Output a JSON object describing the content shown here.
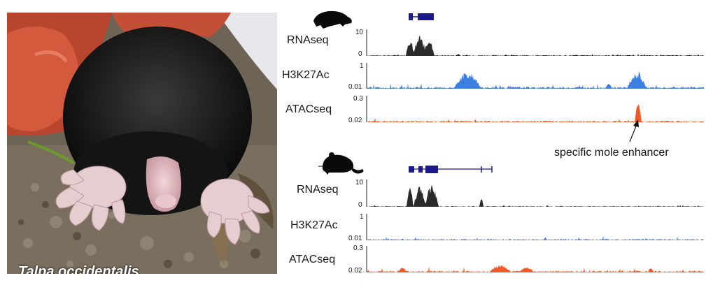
{
  "photo": {
    "caption": "Talpa occidentalis"
  },
  "panels": [
    {
      "species_icon": "mole-silhouette-icon",
      "tracks": [
        {
          "label": "RNAseq",
          "ymax": "10",
          "ymin": "0",
          "color": "#1a1a1a"
        },
        {
          "label": "H3K27Ac",
          "ymax": "1",
          "ymin": "0.01",
          "color": "#3d7fe0"
        },
        {
          "label": "ATACseq",
          "ymax": "0.3",
          "ymin": "0.02",
          "color": "#f05a28"
        }
      ]
    },
    {
      "species_icon": "mouse-silhouette-icon",
      "tracks": [
        {
          "label": "RNAseq",
          "ymax": "10",
          "ymin": "0",
          "color": "#1a1a1a"
        },
        {
          "label": "H3K27Ac",
          "ymax": "1",
          "ymin": "0.01",
          "color": "#3d7fe0"
        },
        {
          "label": "ATACseq",
          "ymax": "0.3",
          "ymin": "0.02",
          "color": "#f05a28"
        }
      ]
    }
  ],
  "annotation": {
    "text": "specific mole enhancer"
  },
  "gene_model_color": "#1a1a8c"
}
